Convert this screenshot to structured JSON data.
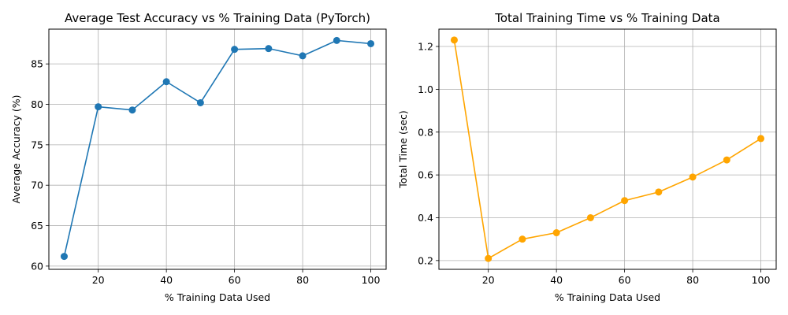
{
  "chart_data": [
    {
      "type": "line",
      "title": "Average Test Accuracy vs % Training Data (PyTorch)",
      "xlabel": "% Training Data Used",
      "ylabel": "Average Accuracy (%)",
      "x": [
        10,
        20,
        30,
        40,
        50,
        60,
        70,
        80,
        90,
        100
      ],
      "series": [
        {
          "values": [
            61.2,
            79.7,
            79.3,
            82.8,
            80.2,
            86.8,
            86.9,
            86.0,
            87.9,
            87.5
          ],
          "color": "#1f77b4"
        }
      ],
      "xlim": [
        5.5,
        104.5
      ],
      "ylim": [
        59.6,
        89.3
      ],
      "xticks": [
        20,
        40,
        60,
        80,
        100
      ],
      "yticks": [
        60,
        65,
        70,
        75,
        80,
        85
      ],
      "ytick_decimals": 0,
      "grid": true,
      "marker": "circle"
    },
    {
      "type": "line",
      "title": "Total Training Time vs % Training Data",
      "xlabel": "% Training Data Used",
      "ylabel": "Total Time (sec)",
      "x": [
        10,
        20,
        30,
        40,
        50,
        60,
        70,
        80,
        90,
        100
      ],
      "series": [
        {
          "values": [
            1.23,
            0.21,
            0.3,
            0.33,
            0.4,
            0.48,
            0.52,
            0.59,
            0.67,
            0.77
          ],
          "color": "#ffa500"
        }
      ],
      "xlim": [
        5.5,
        104.5
      ],
      "ylim": [
        0.159,
        1.281
      ],
      "xticks": [
        20,
        40,
        60,
        80,
        100
      ],
      "yticks": [
        0.2,
        0.4,
        0.6,
        0.8,
        1.0,
        1.2
      ],
      "ytick_decimals": 1,
      "grid": true,
      "marker": "circle"
    }
  ]
}
